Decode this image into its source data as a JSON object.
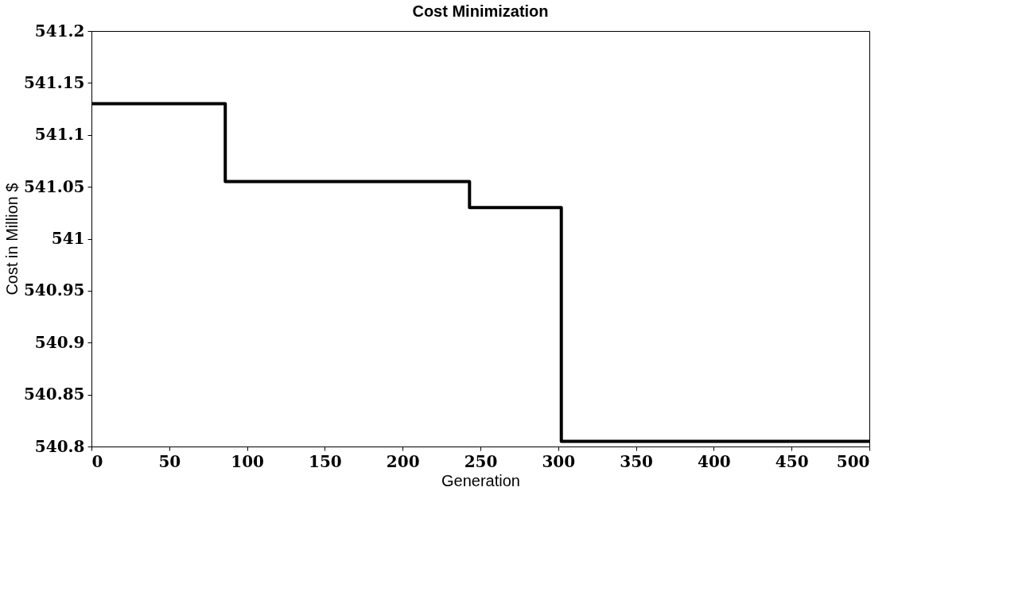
{
  "chart_data": {
    "type": "step",
    "title": "Cost Minimization",
    "xlabel": "Generation",
    "ylabel": "Cost in Million $",
    "x": [
      0,
      86,
      243,
      302,
      500
    ],
    "series": [
      {
        "color": "#000000",
        "values": [
          541.13,
          541.055,
          541.03,
          540.805,
          540.805
        ]
      }
    ],
    "xlim": [
      0,
      500
    ],
    "xticks": [
      0,
      50,
      100,
      150,
      200,
      250,
      300,
      350,
      400,
      450,
      500
    ],
    "ylim": [
      540.8,
      541.2
    ],
    "yticks": [
      540.8,
      540.85,
      540.9,
      540.95,
      541,
      541.05,
      541.1,
      541.15,
      541.2
    ],
    "grid": false,
    "marker": "none",
    "line_style": "solid"
  }
}
